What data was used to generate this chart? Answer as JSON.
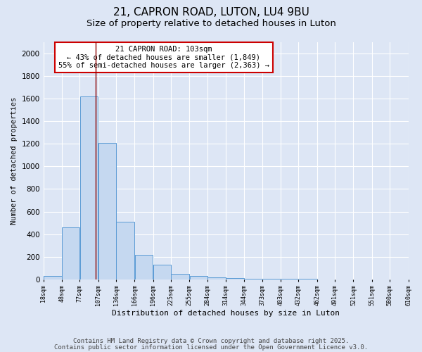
{
  "title1": "21, CAPRON ROAD, LUTON, LU4 9BU",
  "title2": "Size of property relative to detached houses in Luton",
  "xlabel": "Distribution of detached houses by size in Luton",
  "ylabel": "Number of detached properties",
  "bar_edges": [
    18,
    48,
    77,
    107,
    136,
    166,
    196,
    225,
    255,
    284,
    314,
    344,
    373,
    403,
    432,
    462,
    491,
    521,
    551,
    580,
    610
  ],
  "bar_heights": [
    30,
    460,
    1620,
    1210,
    510,
    220,
    130,
    50,
    30,
    20,
    10,
    5,
    3,
    2,
    2,
    1,
    1,
    1,
    0,
    0
  ],
  "bar_color": "#c5d8f0",
  "bar_edge_color": "#5b9bd5",
  "property_size": 103,
  "vline_color": "#8b0000",
  "annotation_line1": "21 CAPRON ROAD: 103sqm",
  "annotation_line2": "← 43% of detached houses are smaller (1,849)",
  "annotation_line3": "55% of semi-detached houses are larger (2,363) →",
  "annotation_box_color": "#ffffff",
  "annotation_border_color": "#cc0000",
  "ylim": [
    0,
    2100
  ],
  "yticks": [
    0,
    200,
    400,
    600,
    800,
    1000,
    1200,
    1400,
    1600,
    1800,
    2000
  ],
  "bg_color": "#dde6f5",
  "plot_bg_color": "#dde6f5",
  "footer1": "Contains HM Land Registry data © Crown copyright and database right 2025.",
  "footer2": "Contains public sector information licensed under the Open Government Licence v3.0.",
  "title1_fontsize": 11,
  "title2_fontsize": 9.5,
  "annotation_fontsize": 7.5,
  "footer_fontsize": 6.5,
  "ylabel_fontsize": 7.5,
  "xlabel_fontsize": 8
}
